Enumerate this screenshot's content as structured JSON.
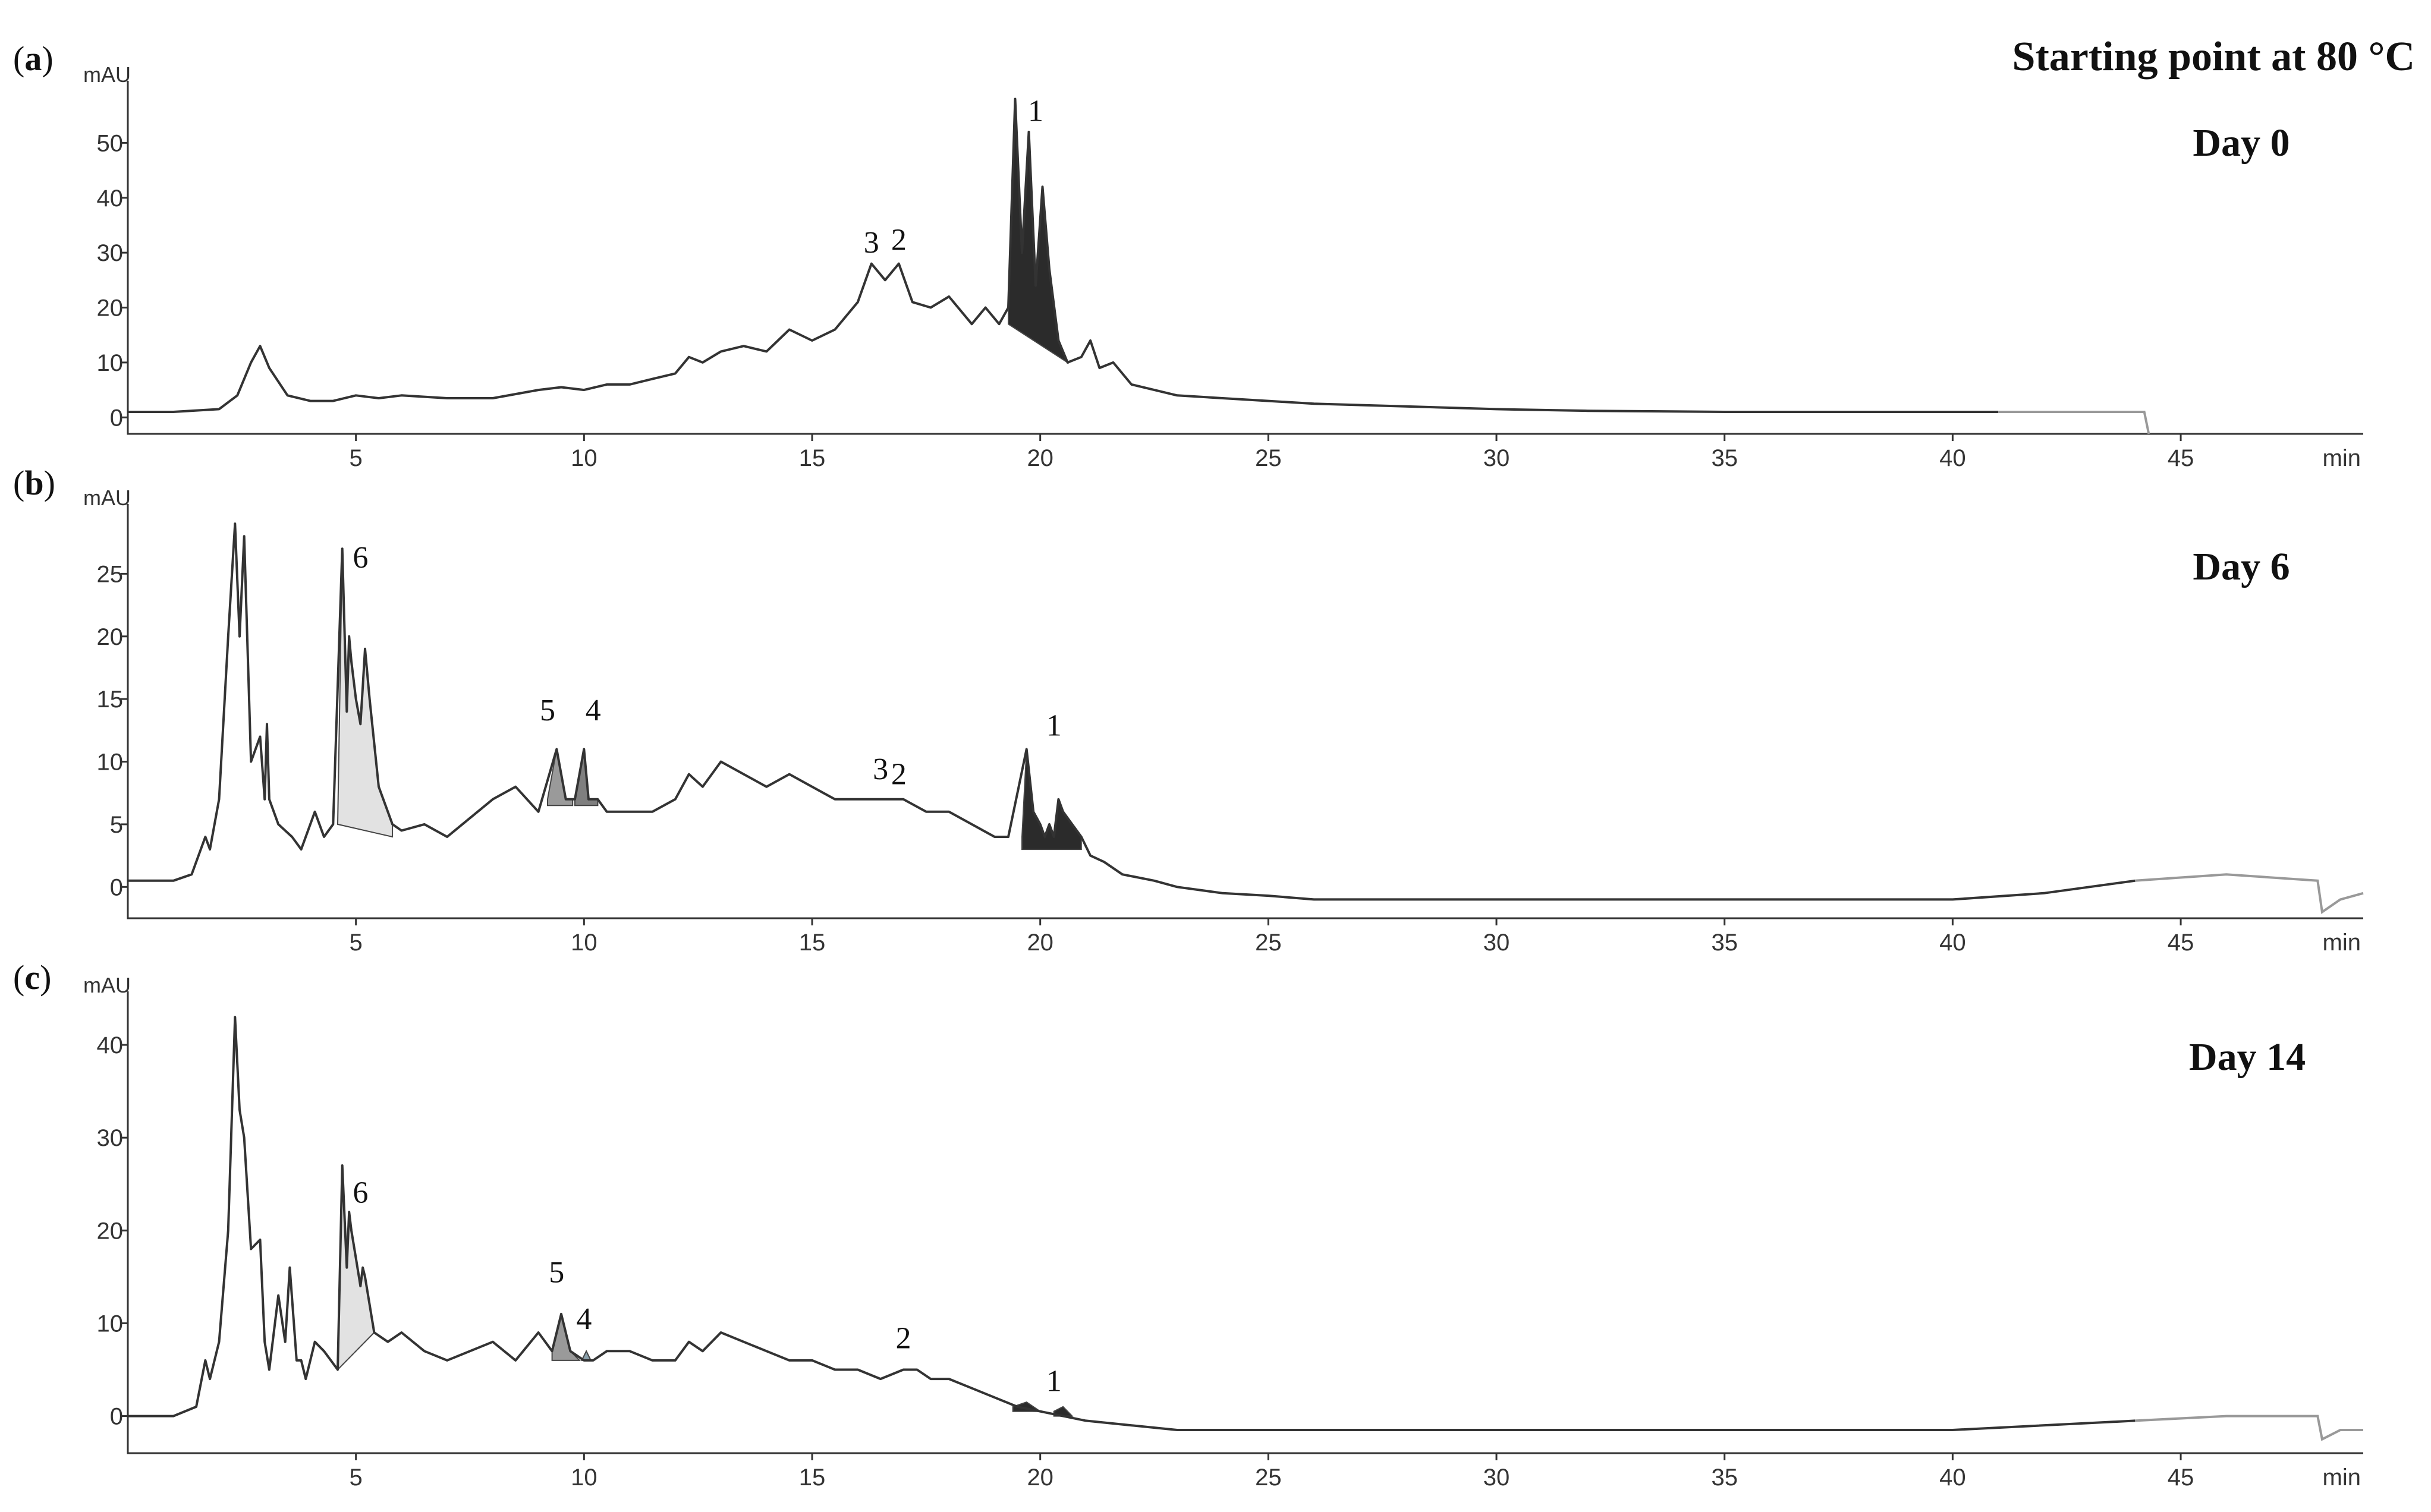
{
  "header": "Starting point at 80 °C",
  "chart_data": [
    {
      "type": "line",
      "panel": "a",
      "title": "Day 0",
      "xlabel": "min",
      "ylabel": "mAU",
      "xlim": [
        0,
        49
      ],
      "ylim": [
        -3,
        60
      ],
      "xticks": [
        5,
        10,
        15,
        20,
        25,
        30,
        35,
        40,
        45
      ],
      "yticks": [
        0,
        10,
        20,
        30,
        40,
        50
      ],
      "tail_from": 41,
      "series": [
        {
          "x": [
            0,
            1,
            2,
            2.4,
            2.7,
            2.9,
            3.1,
            3.5,
            4,
            4.5,
            5,
            5.5,
            6,
            7,
            8,
            9,
            9.5,
            10,
            10.5,
            11,
            11.5,
            12,
            12.3,
            12.6,
            13,
            13.5,
            14,
            14.5,
            15,
            15.5,
            16,
            16.3,
            16.6,
            16.9,
            17.2,
            17.6,
            18,
            18.5,
            18.8,
            19.1,
            19.3,
            19.45,
            19.6,
            19.75,
            19.9,
            20.05,
            20.2,
            20.4,
            20.6,
            20.9,
            21.1,
            21.3,
            21.6,
            22,
            22.5,
            23,
            24,
            25,
            26,
            28,
            30,
            32,
            35,
            38,
            40,
            41,
            43,
            44.2,
            44.3
          ],
          "y": [
            1,
            1,
            1.5,
            4,
            10,
            13,
            9,
            4,
            3,
            3,
            4,
            3.5,
            4,
            3.5,
            3.5,
            5,
            5.5,
            5,
            6,
            6,
            7,
            8,
            11,
            10,
            12,
            13,
            12,
            16,
            14,
            16,
            21,
            28,
            25,
            28,
            21,
            20,
            22,
            17,
            20,
            17,
            20,
            58,
            30,
            52,
            24,
            42,
            27,
            14,
            10,
            11,
            14,
            9,
            10,
            6,
            5,
            4,
            3.5,
            3,
            2.5,
            2,
            1.5,
            1.2,
            1,
            1,
            1,
            1,
            1,
            1,
            -3
          ]
        }
      ],
      "areas": [
        {
          "x": [
            19.3,
            19.45,
            19.6,
            19.75,
            19.9,
            20.05,
            20.2,
            20.4,
            20.6
          ],
          "y": [
            20,
            58,
            30,
            52,
            24,
            42,
            27,
            14,
            10
          ],
          "base": [
            [
              19.3,
              17
            ],
            [
              20.6,
              10
            ]
          ],
          "color": "#2b2b2b"
        }
      ],
      "labels": [
        {
          "text": "1",
          "x": 19.9,
          "y": 54
        },
        {
          "text": "3",
          "x": 16.3,
          "y": 30
        },
        {
          "text": "2",
          "x": 16.9,
          "y": 30.5
        }
      ]
    },
    {
      "type": "line",
      "panel": "b",
      "title": "Day 6",
      "xlabel": "min",
      "ylabel": "mAU",
      "xlim": [
        0,
        49
      ],
      "ylim": [
        -2.5,
        30
      ],
      "xticks": [
        5,
        10,
        15,
        20,
        25,
        30,
        35,
        40,
        45
      ],
      "yticks": [
        0,
        5,
        10,
        15,
        20,
        25
      ],
      "tail_from": 44,
      "series": [
        {
          "x": [
            0,
            1,
            1.4,
            1.7,
            1.8,
            2,
            2.2,
            2.35,
            2.45,
            2.55,
            2.7,
            2.9,
            3,
            3.05,
            3.1,
            3.3,
            3.6,
            3.8,
            4.1,
            4.3,
            4.5,
            4.7,
            4.8,
            4.85,
            4.9,
            5,
            5.1,
            5.15,
            5.2,
            5.3,
            5.5,
            5.8,
            6,
            6.5,
            7,
            8,
            8.5,
            9,
            9.4,
            9.6,
            9.8,
            10,
            10.1,
            10.3,
            10.5,
            11,
            11.5,
            12,
            12.3,
            12.6,
            13,
            13.5,
            14,
            14.5,
            15,
            15.5,
            16,
            16.5,
            17,
            17.5,
            18,
            18.5,
            19,
            19.3,
            19.7,
            19.85,
            20,
            20.1,
            20.2,
            20.3,
            20.4,
            20.5,
            20.7,
            20.9,
            21.1,
            21.4,
            21.8,
            22.5,
            23,
            24,
            25,
            26,
            28,
            30,
            32,
            35,
            38,
            40,
            42,
            44,
            46,
            48,
            48.1,
            48.5,
            49
          ],
          "y": [
            0.5,
            0.5,
            1,
            4,
            3,
            7,
            20,
            29,
            20,
            28,
            10,
            12,
            7,
            13,
            7,
            5,
            4,
            3,
            6,
            4,
            5,
            27,
            14,
            20,
            18,
            15,
            13,
            16,
            19,
            15,
            8,
            5,
            4.5,
            5,
            4,
            7,
            8,
            6,
            11,
            7,
            7,
            11,
            7,
            7,
            6,
            6,
            6,
            7,
            9,
            8,
            10,
            9,
            8,
            9,
            8,
            7,
            7,
            7,
            7,
            6,
            6,
            5,
            4,
            4,
            11,
            6,
            5,
            4,
            5,
            4,
            7,
            6,
            5,
            4,
            2.5,
            2,
            1,
            0.5,
            0,
            -0.5,
            -0.7,
            -1,
            -1,
            -1,
            -1,
            -1,
            -1,
            -1,
            -0.5,
            0.5,
            1,
            0.5,
            -2,
            -1,
            -0.5
          ]
        }
      ],
      "areas": [
        {
          "x": [
            4.6,
            4.7,
            4.8,
            4.85,
            4.9,
            5,
            5.1,
            5.15,
            5.2,
            5.3,
            5.5,
            5.8
          ],
          "y": [
            5,
            27,
            14,
            20,
            18,
            15,
            13,
            16,
            19,
            15,
            8,
            5
          ],
          "base": [
            [
              4.6,
              5
            ],
            [
              5.8,
              4
            ]
          ],
          "color": "#e2e2e2"
        },
        {
          "x": [
            9.2,
            9.4,
            9.6,
            9.75
          ],
          "y": [
            7,
            11,
            7,
            7
          ],
          "base": [
            [
              9.2,
              6.5
            ],
            [
              9.75,
              6.5
            ]
          ],
          "color": "#9a9a9a"
        },
        {
          "x": [
            9.8,
            10,
            10.1,
            10.3
          ],
          "y": [
            7,
            11,
            7,
            7
          ],
          "base": [
            [
              9.8,
              6.5
            ],
            [
              10.3,
              6.5
            ]
          ],
          "color": "#7f7f7f"
        },
        {
          "x": [
            19.6,
            19.7,
            19.85,
            20,
            20.1,
            20.2,
            20.3,
            20.4,
            20.5,
            20.7,
            20.9
          ],
          "y": [
            4,
            11,
            6,
            5,
            4,
            5,
            4,
            7,
            6,
            5,
            4
          ],
          "base": [
            [
              19.6,
              3
            ],
            [
              20.9,
              3
            ]
          ],
          "color": "#2b2b2b"
        }
      ],
      "labels": [
        {
          "text": "6",
          "x": 5.1,
          "y": 25.5
        },
        {
          "text": "5",
          "x": 9.2,
          "y": 13.3
        },
        {
          "text": "4",
          "x": 10.2,
          "y": 13.3
        },
        {
          "text": "3",
          "x": 16.5,
          "y": 8.6
        },
        {
          "text": "2",
          "x": 16.9,
          "y": 8.2
        },
        {
          "text": "1",
          "x": 20.3,
          "y": 12.1
        }
      ]
    },
    {
      "type": "line",
      "panel": "c",
      "title": "Day 14",
      "xlabel": "min",
      "ylabel": "mAU",
      "xlim": [
        0,
        49
      ],
      "ylim": [
        -4,
        45
      ],
      "xticks": [
        5,
        10,
        15,
        20,
        25,
        30,
        35,
        40,
        45
      ],
      "yticks": [
        0,
        10,
        20,
        30,
        40
      ],
      "tail_from": 44,
      "series": [
        {
          "x": [
            0,
            1,
            1.5,
            1.7,
            1.8,
            2,
            2.2,
            2.35,
            2.45,
            2.55,
            2.7,
            2.9,
            3,
            3.1,
            3.3,
            3.45,
            3.55,
            3.7,
            3.8,
            3.9,
            4.1,
            4.3,
            4.6,
            4.7,
            4.8,
            4.85,
            4.9,
            5,
            5.1,
            5.15,
            5.2,
            5.4,
            5.7,
            6,
            6.5,
            7,
            8,
            8.5,
            9,
            9.3,
            9.5,
            9.7,
            10,
            10.2,
            10.5,
            11,
            11.5,
            12,
            12.3,
            12.6,
            13,
            13.5,
            14,
            14.5,
            15,
            15.5,
            16,
            16.5,
            17,
            17.3,
            17.6,
            18,
            18.5,
            19,
            19.5,
            20,
            20.5,
            21,
            22,
            23,
            25,
            27,
            30,
            35,
            40,
            44,
            46,
            48,
            48.1,
            48.5,
            49
          ],
          "y": [
            0,
            0,
            1,
            6,
            4,
            8,
            20,
            43,
            33,
            30,
            18,
            19,
            8,
            5,
            13,
            8,
            16,
            6,
            6,
            4,
            8,
            7,
            5,
            27,
            16,
            22,
            20,
            17,
            14,
            16,
            15,
            9,
            8,
            9,
            7,
            6,
            8,
            6,
            9,
            7,
            11,
            7,
            6,
            6,
            7,
            7,
            6,
            6,
            8,
            7,
            9,
            8,
            7,
            6,
            6,
            5,
            5,
            4,
            5,
            5,
            4,
            4,
            3,
            2,
            1,
            0.5,
            0,
            -0.5,
            -1,
            -1.5,
            -1.5,
            -1.5,
            -1.5,
            -1.5,
            -1.5,
            -0.5,
            0,
            0,
            -2.5,
            -1.5,
            -1.5
          ]
        }
      ],
      "areas": [
        {
          "x": [
            4.6,
            4.7,
            4.8,
            4.85,
            4.9,
            5,
            5.1,
            5.15,
            5.2,
            5.4
          ],
          "y": [
            5,
            27,
            16,
            22,
            20,
            17,
            14,
            16,
            15,
            9
          ],
          "base": [
            [
              4.6,
              5
            ],
            [
              5.4,
              9
            ]
          ],
          "color": "#e2e2e2"
        },
        {
          "x": [
            9.3,
            9.5,
            9.7,
            9.9
          ],
          "y": [
            7,
            11,
            7,
            6
          ],
          "base": [
            [
              9.3,
              6
            ],
            [
              9.9,
              6
            ]
          ],
          "color": "#9a9a9a"
        },
        {
          "x": [
            9.95,
            10.05,
            10.15
          ],
          "y": [
            6,
            7,
            6
          ],
          "base": [
            [
              9.95,
              6
            ],
            [
              10.15,
              6
            ]
          ],
          "color": "#8aa0ab"
        },
        {
          "x": [
            19.4,
            19.7,
            20
          ],
          "y": [
            1,
            1.5,
            0.5
          ],
          "base": [
            [
              19.4,
              0.5
            ],
            [
              20,
              0.5
            ]
          ],
          "color": "#2b2b2b"
        },
        {
          "x": [
            20.3,
            20.5,
            20.7
          ],
          "y": [
            0.5,
            1,
            0
          ],
          "base": [
            [
              20.3,
              0
            ],
            [
              20.7,
              0
            ]
          ],
          "color": "#2b2b2b"
        }
      ],
      "labels": [
        {
          "text": "6",
          "x": 5.1,
          "y": 23
        },
        {
          "text": "5",
          "x": 9.4,
          "y": 14.4
        },
        {
          "text": "4",
          "x": 10,
          "y": 9.4
        },
        {
          "text": "2",
          "x": 17,
          "y": 7.3
        },
        {
          "text": "1",
          "x": 20.3,
          "y": 2.7
        }
      ]
    }
  ]
}
